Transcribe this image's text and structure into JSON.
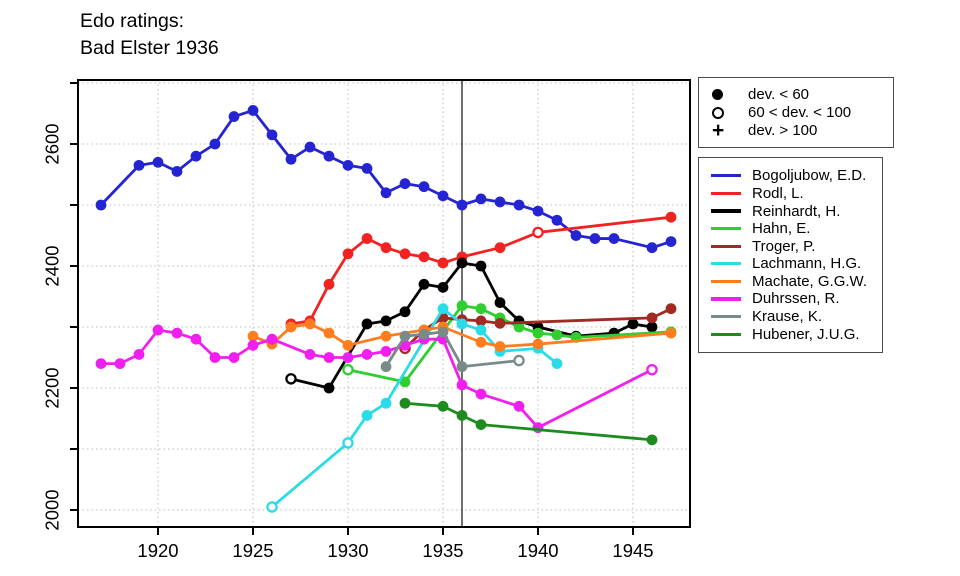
{
  "title": {
    "line1": "Edo ratings:",
    "line2": "Bad Elster 1936"
  },
  "marker_legend": {
    "items": [
      {
        "marker": "filled-circle",
        "label": "dev. < 60"
      },
      {
        "marker": "open-circle",
        "label": "60 < dev. < 100"
      },
      {
        "marker": "plus",
        "label": "dev. > 100"
      }
    ]
  },
  "chart_data": {
    "type": "line",
    "title": "Edo ratings: Bad Elster 1936",
    "xlabel": "",
    "ylabel": "",
    "x_ticks": [
      1920,
      1925,
      1930,
      1935,
      1940,
      1945
    ],
    "y_ticks_labeled": [
      2000,
      2200,
      2400,
      2600
    ],
    "y_ticks_all": [
      2000,
      2100,
      2200,
      2300,
      2400,
      2500,
      2600,
      2700
    ],
    "x_range": [
      1915.8,
      1948.0
    ],
    "y_range": [
      1972,
      2705
    ],
    "grid": "dotted",
    "legend_position": "right",
    "event_line_year": 1936,
    "marker_meaning": {
      "f": "dev. < 60",
      "o": "60 < dev. < 100",
      "p": "dev. > 100"
    },
    "series": [
      {
        "name": "Bogoljubow, E.D.",
        "slug": "bogoljubow",
        "color": "#2424D2",
        "points": [
          [
            1917,
            2500
          ],
          [
            1919,
            2565
          ],
          [
            1920,
            2570
          ],
          [
            1921,
            2555
          ],
          [
            1922,
            2580
          ],
          [
            1923,
            2600
          ],
          [
            1924,
            2645
          ],
          [
            1925,
            2655
          ],
          [
            1926,
            2615
          ],
          [
            1927,
            2575
          ],
          [
            1928,
            2595
          ],
          [
            1929,
            2580
          ],
          [
            1930,
            2565
          ],
          [
            1931,
            2560
          ],
          [
            1932,
            2520
          ],
          [
            1933,
            2535
          ],
          [
            1934,
            2530
          ],
          [
            1935,
            2515
          ],
          [
            1936,
            2500
          ],
          [
            1937,
            2510
          ],
          [
            1938,
            2505
          ],
          [
            1939,
            2500
          ],
          [
            1940,
            2490
          ],
          [
            1941,
            2475
          ],
          [
            1942,
            2450
          ],
          [
            1943,
            2445
          ],
          [
            1944,
            2445
          ],
          [
            1946,
            2430
          ],
          [
            1947,
            2440
          ]
        ]
      },
      {
        "name": "Rodl, L.",
        "slug": "rodl",
        "color": "#F32222",
        "points": [
          [
            1927,
            2305
          ],
          [
            1928,
            2310
          ],
          [
            1929,
            2370
          ],
          [
            1930,
            2420
          ],
          [
            1931,
            2445
          ],
          [
            1932,
            2430
          ],
          [
            1933,
            2420
          ],
          [
            1934,
            2415
          ],
          [
            1935,
            2405
          ],
          [
            1936,
            2415
          ],
          [
            1938,
            2430
          ],
          [
            1940,
            2455,
            "o"
          ],
          [
            1947,
            2480
          ]
        ]
      },
      {
        "name": "Reinhardt, H.",
        "slug": "reinhardt",
        "color": "#000000",
        "points": [
          [
            1927,
            2215,
            "o"
          ],
          [
            1929,
            2200
          ],
          [
            1931,
            2305
          ],
          [
            1932,
            2310
          ],
          [
            1933,
            2325
          ],
          [
            1934,
            2370
          ],
          [
            1935,
            2365
          ],
          [
            1936,
            2405
          ],
          [
            1937,
            2400
          ],
          [
            1938,
            2340
          ],
          [
            1939,
            2310
          ],
          [
            1940,
            2300
          ],
          [
            1942,
            2285
          ],
          [
            1944,
            2290
          ],
          [
            1945,
            2305
          ],
          [
            1946,
            2300
          ]
        ]
      },
      {
        "name": "Hahn, E.",
        "slug": "hahn",
        "color": "#2FCF2F",
        "points": [
          [
            1930,
            2230,
            "o"
          ],
          [
            1933,
            2210
          ],
          [
            1936,
            2335
          ],
          [
            1937,
            2330
          ],
          [
            1938,
            2315
          ],
          [
            1939,
            2300
          ],
          [
            1940,
            2290
          ],
          [
            1941,
            2287
          ],
          [
            1942,
            2283
          ],
          [
            1947,
            2292
          ]
        ]
      },
      {
        "name": "Troger, P.",
        "slug": "troger",
        "color": "#A12A22",
        "points": [
          [
            1933,
            2265,
            "o"
          ],
          [
            1934,
            2295
          ],
          [
            1935,
            2315
          ],
          [
            1936,
            2312
          ],
          [
            1937,
            2310
          ],
          [
            1938,
            2306
          ],
          [
            1946,
            2315
          ],
          [
            1947,
            2330
          ]
        ]
      },
      {
        "name": "Lachmann, H.G.",
        "slug": "lachmann",
        "color": "#29DCE8",
        "points": [
          [
            1926,
            2005,
            "o"
          ],
          [
            1930,
            2110,
            "o"
          ],
          [
            1931,
            2155
          ],
          [
            1932,
            2175
          ],
          [
            1935,
            2330
          ],
          [
            1936,
            2305
          ],
          [
            1937,
            2295
          ],
          [
            1938,
            2260
          ],
          [
            1940,
            2265
          ],
          [
            1941,
            2240
          ]
        ]
      },
      {
        "name": "Machate, G.G.W.",
        "slug": "machate",
        "color": "#FF7D1F",
        "points": [
          [
            1925,
            2285
          ],
          [
            1926,
            2272
          ],
          [
            1927,
            2300
          ],
          [
            1928,
            2305
          ],
          [
            1929,
            2290
          ],
          [
            1930,
            2270
          ],
          [
            1932,
            2285
          ],
          [
            1934,
            2295
          ],
          [
            1935,
            2300
          ],
          [
            1937,
            2275
          ],
          [
            1938,
            2268
          ],
          [
            1940,
            2272
          ],
          [
            1947,
            2290
          ]
        ]
      },
      {
        "name": "Duhrssen, R.",
        "slug": "duhrssen",
        "color": "#F01FF0",
        "points": [
          [
            1917,
            2240
          ],
          [
            1918,
            2240
          ],
          [
            1919,
            2255
          ],
          [
            1920,
            2295
          ],
          [
            1921,
            2290
          ],
          [
            1922,
            2280
          ],
          [
            1923,
            2250
          ],
          [
            1924,
            2250
          ],
          [
            1925,
            2270
          ],
          [
            1926,
            2280
          ],
          [
            1928,
            2255
          ],
          [
            1929,
            2250
          ],
          [
            1930,
            2250
          ],
          [
            1931,
            2255
          ],
          [
            1932,
            2260
          ],
          [
            1933,
            2270
          ],
          [
            1934,
            2280
          ],
          [
            1935,
            2280
          ],
          [
            1936,
            2205
          ],
          [
            1937,
            2190
          ],
          [
            1939,
            2170
          ],
          [
            1940,
            2135
          ],
          [
            1946,
            2230,
            "o"
          ]
        ]
      },
      {
        "name": "Krause, K.",
        "slug": "krause",
        "color": "#798A8A",
        "points": [
          [
            1932,
            2235
          ],
          [
            1933,
            2285
          ],
          [
            1934,
            2288
          ],
          [
            1935,
            2292
          ],
          [
            1936,
            2235
          ],
          [
            1939,
            2245,
            "o"
          ]
        ]
      },
      {
        "name": "Hubener, J.U.G.",
        "slug": "hubener",
        "color": "#1E8B1E",
        "points": [
          [
            1933,
            2175
          ],
          [
            1935,
            2170
          ],
          [
            1936,
            2155
          ],
          [
            1937,
            2140
          ],
          [
            1946,
            2115
          ]
        ]
      }
    ]
  }
}
